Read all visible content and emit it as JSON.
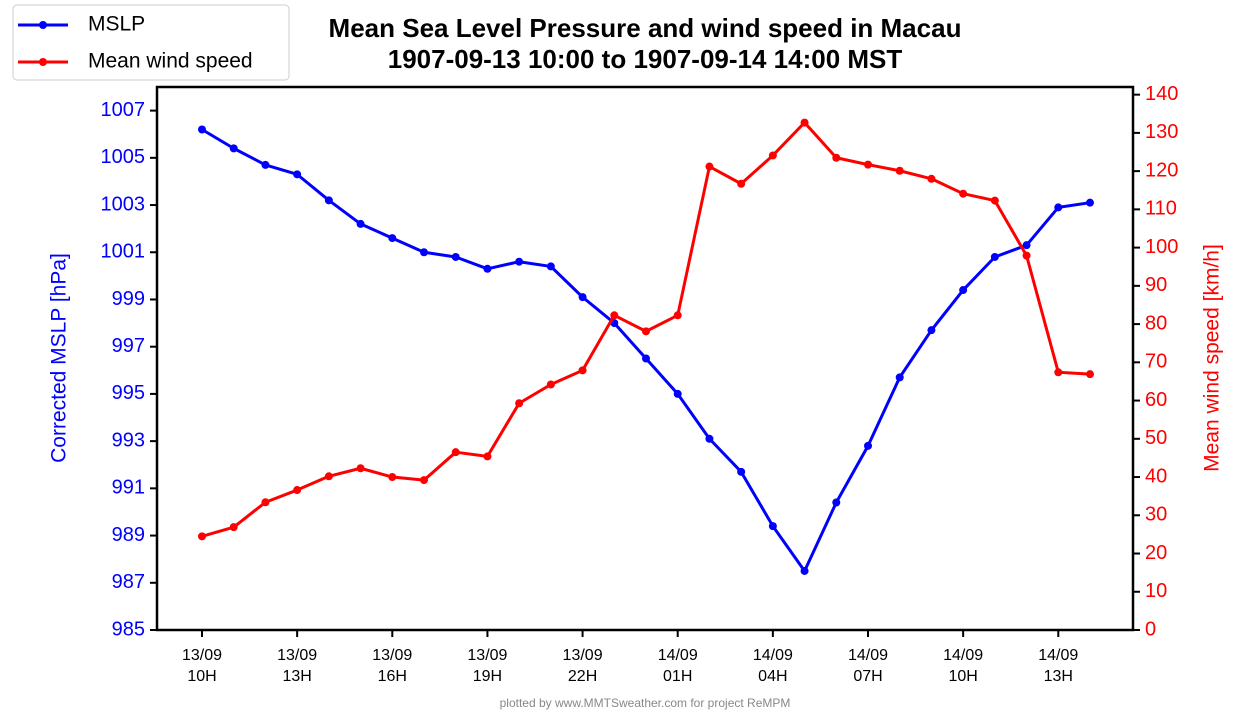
{
  "chart_data": {
    "type": "line",
    "title": "Mean Sea Level Pressure and wind speed in Macau",
    "subtitle": "1907-09-13 10:00 to 1907-09-14 14:00 MST",
    "y_label": "Corrected MSLP [hPa]",
    "y2_label": "Mean wind speed [km/h]",
    "categories": [
      "13/09\n10H",
      null,
      null,
      "13/09\n13H",
      null,
      null,
      "13/09\n16H",
      null,
      null,
      "13/09\n19H",
      null,
      null,
      "13/09\n22H",
      null,
      null,
      "14/09\n01H",
      null,
      null,
      "14/09\n04H",
      null,
      null,
      "14/09\n07H",
      null,
      null,
      "14/09\n10H",
      null,
      null,
      "14/09\n13H",
      null
    ],
    "series": [
      {
        "name": "MSLP",
        "color": "#0000ff",
        "values": [
          1006.2,
          1005.4,
          1004.7,
          1004.3,
          1003.2,
          1002.2,
          1001.6,
          1001.0,
          1000.8,
          1000.3,
          1000.6,
          1000.4,
          999.1,
          998.0,
          996.5,
          995.0,
          993.1,
          991.7,
          989.4,
          987.5,
          990.4,
          992.8,
          995.7,
          997.7,
          999.4,
          1000.8,
          1001.3,
          1002.9,
          1003.1
        ]
      },
      {
        "name": "Mean wind speed",
        "color": "#ff0000",
        "axis": "y2",
        "values": [
          24.5,
          26.9,
          33.4,
          36.6,
          40.2,
          42.3,
          40.0,
          39.2,
          46.5,
          45.4,
          59.3,
          64.2,
          67.9,
          82.3,
          78.1,
          82.3,
          121.2,
          116.7,
          124.1,
          132.7,
          123.5,
          121.7,
          120.1,
          118.0,
          114.1,
          112.3,
          97.9,
          67.4,
          66.9
        ]
      }
    ],
    "ylim": [
      985,
      1008
    ],
    "yticks": [
      985,
      987,
      989,
      991,
      993,
      995,
      997,
      999,
      1001,
      1003,
      1005,
      1007
    ],
    "y2lim": [
      0,
      142
    ],
    "y2ticks": [
      0,
      10,
      20,
      30,
      40,
      50,
      60,
      70,
      80,
      90,
      100,
      110,
      120,
      130,
      140
    ],
    "grid": false,
    "legend": "upper left"
  },
  "footer": "plotted by www.MMTSweather.com for project ReMPM"
}
